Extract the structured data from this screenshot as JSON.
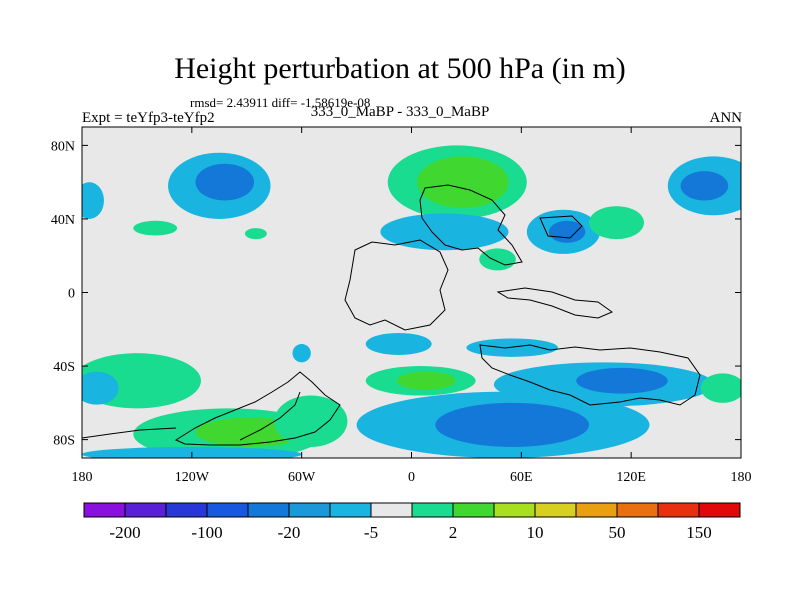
{
  "header": {
    "title": "Height perturbation at 500 hPa (in m)",
    "stats": "rmsd= 2.43911 diff= -1.58619e-08",
    "experiment": "Expt = teYfp3-teYfp2",
    "case": "333_0_MaBP - 333_0_MaBP",
    "season": "ANN"
  },
  "chart_data": {
    "type": "heatmap",
    "title": "Height perturbation at 500 hPa (in m)",
    "xlim": [
      -180,
      180
    ],
    "ylim": [
      -90,
      90
    ],
    "x_ticks": [
      {
        "value": -180,
        "label": "180"
      },
      {
        "value": -120,
        "label": "120W"
      },
      {
        "value": -60,
        "label": "60W"
      },
      {
        "value": 0,
        "label": "0"
      },
      {
        "value": 60,
        "label": "60E"
      },
      {
        "value": 120,
        "label": "120E"
      },
      {
        "value": 180,
        "label": "180"
      }
    ],
    "y_ticks": [
      {
        "value": 80,
        "label": "80N"
      },
      {
        "value": 40,
        "label": "40N"
      },
      {
        "value": 0,
        "label": "0"
      },
      {
        "value": -40,
        "label": "40S"
      },
      {
        "value": -80,
        "label": "80S"
      }
    ],
    "background_color": "#e8e8e8",
    "colorbar": {
      "colors": [
        "#8a10e0",
        "#5a20d8",
        "#2838d8",
        "#1858e0",
        "#1478d8",
        "#1a98d8",
        "#1ab4e0",
        "#e8e8e8",
        "#1adc90",
        "#40d830",
        "#a8e020",
        "#d8d020",
        "#e8a010",
        "#e87010",
        "#e83010",
        "#e00808"
      ],
      "labels": [
        "-200",
        "-100",
        "-20",
        "-5",
        "2",
        "10",
        "50",
        "150"
      ]
    },
    "anomalies": [
      {
        "lon": -105,
        "lat": 58,
        "rlon": 28,
        "rlat": 18,
        "level": -1
      },
      {
        "lon": -102,
        "lat": 60,
        "rlon": 16,
        "rlat": 10,
        "level": -2
      },
      {
        "lon": -176,
        "lat": 50,
        "rlon": 8,
        "rlat": 10,
        "level": -1
      },
      {
        "lon": -140,
        "lat": 35,
        "rlon": 12,
        "rlat": 4,
        "level": 1
      },
      {
        "lon": -85,
        "lat": 32,
        "rlon": 6,
        "rlat": 3,
        "level": 1
      },
      {
        "lon": 25,
        "lat": 60,
        "rlon": 38,
        "rlat": 20,
        "level": 1
      },
      {
        "lon": 28,
        "lat": 60,
        "rlon": 25,
        "rlat": 14,
        "level": 2
      },
      {
        "lon": 18,
        "lat": 33,
        "rlon": 35,
        "rlat": 10,
        "level": -1
      },
      {
        "lon": 83,
        "lat": 33,
        "rlon": 20,
        "rlat": 12,
        "level": -1
      },
      {
        "lon": 85,
        "lat": 33,
        "rlon": 10,
        "rlat": 6,
        "level": -2
      },
      {
        "lon": 112,
        "lat": 38,
        "rlon": 15,
        "rlat": 9,
        "level": 1
      },
      {
        "lon": 165,
        "lat": 58,
        "rlon": 25,
        "rlat": 16,
        "level": -1
      },
      {
        "lon": 160,
        "lat": 58,
        "rlon": 13,
        "rlat": 8,
        "level": -2
      },
      {
        "lon": 47,
        "lat": 18,
        "rlon": 10,
        "rlat": 6,
        "level": 1
      },
      {
        "lon": -150,
        "lat": -48,
        "rlon": 35,
        "rlat": 15,
        "level": 1
      },
      {
        "lon": -172,
        "lat": -52,
        "rlon": 12,
        "rlat": 9,
        "level": -1
      },
      {
        "lon": -100,
        "lat": -77,
        "rlon": 52,
        "rlat": 14,
        "level": 1
      },
      {
        "lon": -88,
        "lat": -76,
        "rlon": 30,
        "rlat": 8,
        "level": 2
      },
      {
        "lon": -55,
        "lat": -70,
        "rlon": 20,
        "rlat": 14,
        "level": 1
      },
      {
        "lon": -120,
        "lat": -88,
        "rlon": 60,
        "rlat": 4,
        "level": -1
      },
      {
        "lon": 50,
        "lat": -72,
        "rlon": 80,
        "rlat": 18,
        "level": -1
      },
      {
        "lon": 55,
        "lat": -72,
        "rlon": 42,
        "rlat": 12,
        "level": -2
      },
      {
        "lon": 5,
        "lat": -48,
        "rlon": 30,
        "rlat": 8,
        "level": 1
      },
      {
        "lon": 8,
        "lat": -48,
        "rlon": 16,
        "rlat": 5,
        "level": 2
      },
      {
        "lon": 105,
        "lat": -50,
        "rlon": 60,
        "rlat": 12,
        "level": -1
      },
      {
        "lon": 115,
        "lat": -48,
        "rlon": 25,
        "rlat": 7,
        "level": -2
      },
      {
        "lon": 55,
        "lat": -30,
        "rlon": 25,
        "rlat": 5,
        "level": -1
      },
      {
        "lon": -7,
        "lat": -28,
        "rlon": 18,
        "rlat": 6,
        "level": -1
      },
      {
        "lon": -60,
        "lat": -33,
        "rlon": 5,
        "rlat": 5,
        "level": -1
      },
      {
        "lon": 170,
        "lat": -52,
        "rlon": 12,
        "rlat": 8,
        "level": 1
      }
    ]
  }
}
